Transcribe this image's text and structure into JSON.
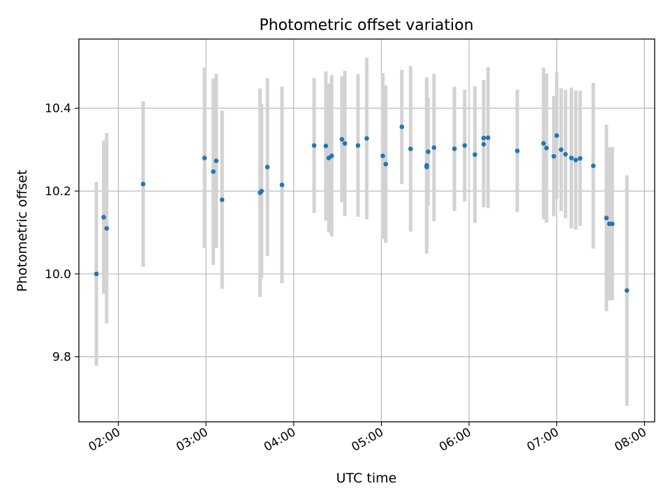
{
  "chart_data": {
    "type": "scatter",
    "title": "Photometric offset variation",
    "xlabel": "UTC time",
    "ylabel": "Photometric offset",
    "x_ticks": [
      "02:00",
      "03:00",
      "04:00",
      "05:00",
      "06:00",
      "07:00",
      "08:00"
    ],
    "y_ticks": [
      "9.8",
      "10.0",
      "10.2",
      "10.4"
    ],
    "grid": true,
    "colors": {
      "point": "#1f77b4",
      "errorbar": "#d3d3d3",
      "grid": "#b0b0b0"
    },
    "series": [
      {
        "x": [
          "01:45",
          "01:50",
          "01:52",
          "02:17",
          "02:59",
          "03:05",
          "03:07",
          "03:11",
          "03:37",
          "03:38",
          "03:42",
          "03:52",
          "04:14",
          "04:22",
          "04:24",
          "04:26",
          "04:33",
          "04:35",
          "04:44",
          "04:50",
          "05:01",
          "05:03",
          "05:14",
          "05:20",
          "05:31",
          "05:31",
          "05:32",
          "05:36",
          "05:50",
          "05:57",
          "06:04",
          "06:10",
          "06:10",
          "06:13",
          "06:33",
          "06:51",
          "06:53",
          "06:58",
          "07:00",
          "07:03",
          "07:06",
          "07:10",
          "07:13",
          "07:16",
          "07:25",
          "07:34",
          "07:36",
          "07:38",
          "07:48"
        ],
        "y": [
          10.0,
          10.137,
          10.11,
          10.217,
          10.28,
          10.247,
          10.273,
          10.179,
          10.196,
          10.2,
          10.258,
          10.215,
          10.31,
          10.309,
          10.28,
          10.285,
          10.325,
          10.315,
          10.31,
          10.327,
          10.285,
          10.265,
          10.355,
          10.302,
          10.262,
          10.258,
          10.295,
          10.305,
          10.302,
          10.31,
          10.288,
          10.328,
          10.313,
          10.329,
          10.297,
          10.315,
          10.304,
          10.284,
          10.334,
          10.3,
          10.289,
          10.28,
          10.275,
          10.279,
          10.261,
          10.135,
          10.121,
          10.121,
          9.96
        ],
        "yerr": [
          0.222,
          0.185,
          0.23,
          0.2,
          0.218,
          0.225,
          0.21,
          0.215,
          0.252,
          0.21,
          0.215,
          0.237,
          0.163,
          0.18,
          0.18,
          0.195,
          0.152,
          0.175,
          0.172,
          0.195,
          0.2,
          0.19,
          0.138,
          0.2,
          0.213,
          0.198,
          0.13,
          0.178,
          0.15,
          0.135,
          0.165,
          0.14,
          0.152,
          0.17,
          0.148,
          0.183,
          0.18,
          0.145,
          0.153,
          0.148,
          0.155,
          0.17,
          0.168,
          0.163,
          0.2,
          0.225,
          0.185,
          0.185,
          0.278
        ]
      }
    ],
    "xlim": [
      "01:33",
      "08:07"
    ],
    "ylim": [
      9.643,
      10.567
    ]
  }
}
